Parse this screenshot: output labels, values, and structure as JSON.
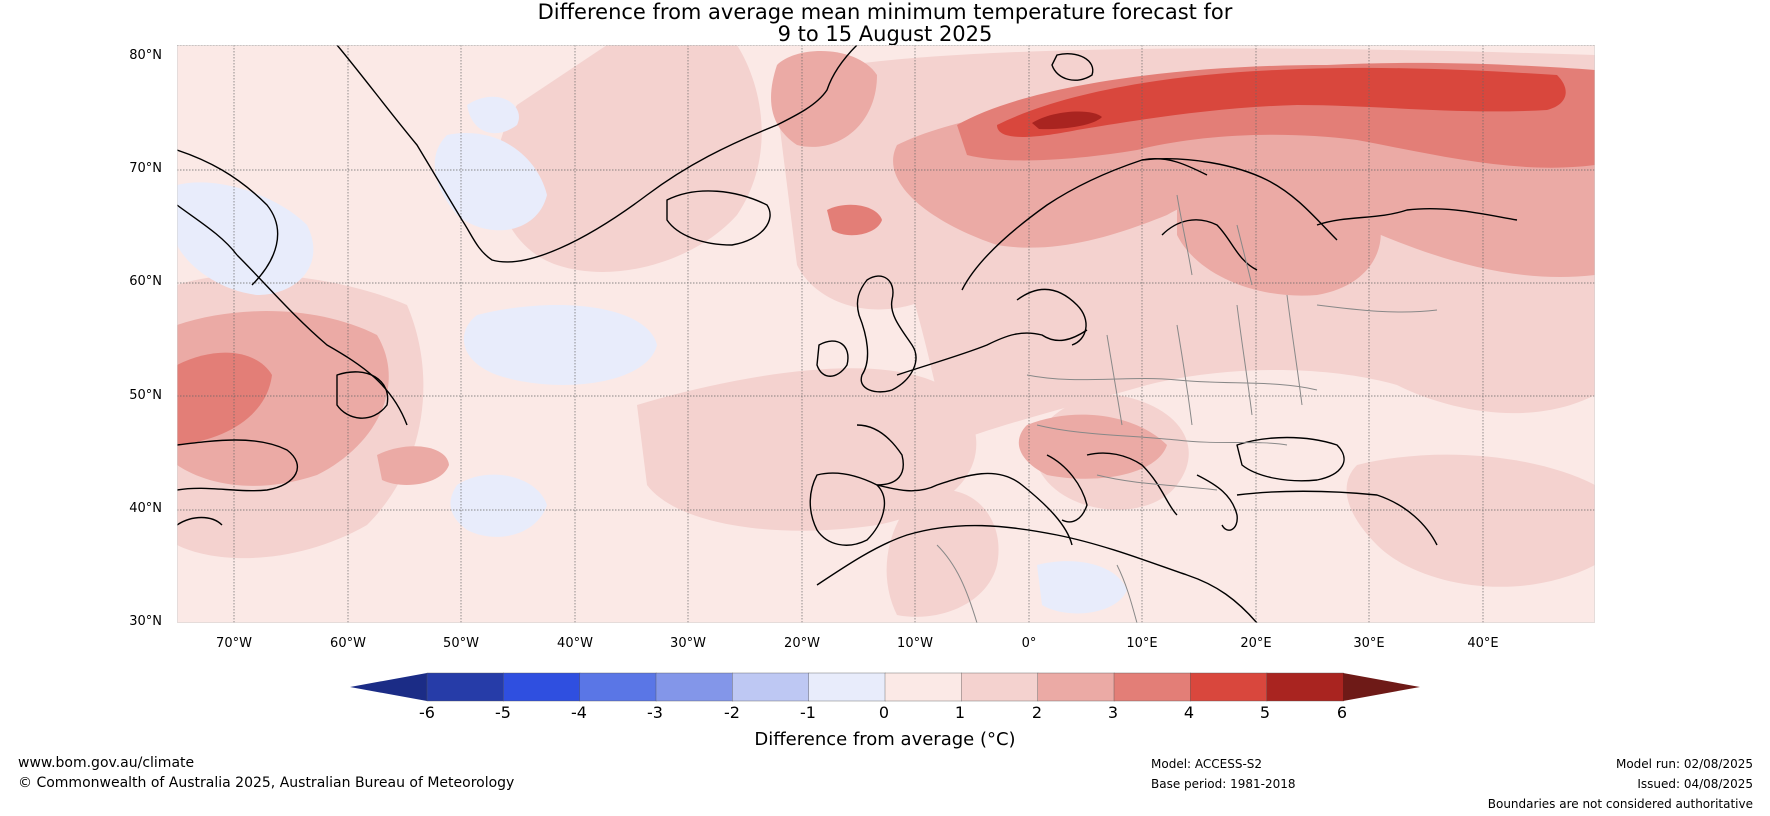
{
  "title": {
    "line1": "Difference from average mean minimum temperature forecast for",
    "line2": "9 to 15 August 2025"
  },
  "map": {
    "latitudes": [
      "80°N",
      "70°N",
      "60°N",
      "50°N",
      "40°N",
      "30°N"
    ],
    "longitudes": [
      "70°W",
      "60°W",
      "50°W",
      "40°W",
      "30°W",
      "20°W",
      "10°W",
      "0°",
      "10°E",
      "20°E",
      "30°E",
      "40°E"
    ],
    "background_color": "#fbe9e6",
    "coast_color": "#000000",
    "border_color": "#888888",
    "grid_color": "#666666"
  },
  "colorbar": {
    "ticks": [
      "-6",
      "-5",
      "-4",
      "-3",
      "-2",
      "-1",
      "0",
      "1",
      "2",
      "3",
      "4",
      "5",
      "6"
    ],
    "colors": [
      "#263ca8",
      "#2f4fe0",
      "#5a76e6",
      "#8396e9",
      "#bec8f3",
      "#e8ecfb",
      "#fbe9e6",
      "#f4d2cf",
      "#ebaaa5",
      "#e37e77",
      "#d9473d",
      "#a92420"
    ],
    "under_color": "#1b2c86",
    "over_color": "#6e1a17",
    "label": "Difference from average (°C)"
  },
  "footer": {
    "url": "www.bom.gov.au/climate",
    "copyright": "© Commonwealth of Australia 2025, Australian Bureau of Meteorology",
    "model": "Model: ACCESS-S2",
    "base_period": "Base period: 1981-2018",
    "model_run": "Model run: 02/08/2025",
    "issued": "Issued: 04/08/2025",
    "disclaimer": "Boundaries are not considered authoritative"
  }
}
